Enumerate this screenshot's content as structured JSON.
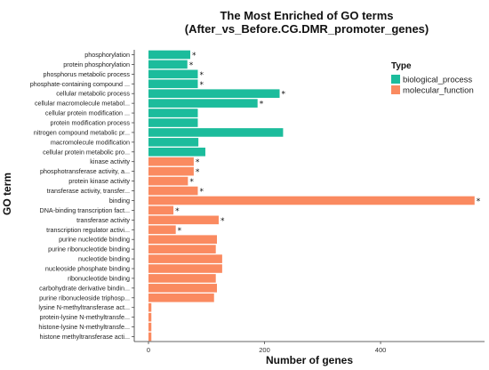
{
  "chart_data": {
    "type": "bar",
    "orientation": "horizontal",
    "title_line1": "The Most Enriched of GO terms",
    "title_line2": "(After_vs_Before.CG.DMR_promoter_genes)",
    "xlabel": "Number of genes",
    "ylabel": "GO term",
    "xlim": [
      0,
      570
    ],
    "xticks": [
      0,
      200,
      400
    ],
    "legend": {
      "title": "Type",
      "position": "right",
      "entries": [
        {
          "name": "biological_process",
          "color": "#1cbc9c"
        },
        {
          "name": "molecular_function",
          "color": "#fa8a60"
        }
      ]
    },
    "bars": [
      {
        "label": "phosphorylation",
        "value": 72,
        "type": "biological_process",
        "star": "*"
      },
      {
        "label": "protein phosphorylation",
        "value": 67,
        "type": "biological_process",
        "star": "*"
      },
      {
        "label": "phosphorus metabolic process",
        "value": 85,
        "type": "biological_process",
        "star": "*"
      },
      {
        "label": "phosphate-containing compound ...",
        "value": 85,
        "type": "biological_process",
        "star": "*"
      },
      {
        "label": "cellular metabolic process",
        "value": 226,
        "type": "biological_process",
        "star": "*"
      },
      {
        "label": "cellular macromolecule metabol...",
        "value": 188,
        "type": "biological_process",
        "star": "*"
      },
      {
        "label": "cellular protein modification ...",
        "value": 85,
        "type": "biological_process",
        "star": ""
      },
      {
        "label": "protein modification process",
        "value": 85,
        "type": "biological_process",
        "star": ""
      },
      {
        "label": "nitrogen compound metabolic pr...",
        "value": 232,
        "type": "biological_process",
        "star": ""
      },
      {
        "label": "macromolecule modification",
        "value": 86,
        "type": "biological_process",
        "star": ""
      },
      {
        "label": "cellular protein metabolic pro...",
        "value": 98,
        "type": "biological_process",
        "star": ""
      },
      {
        "label": "kinase activity",
        "value": 78,
        "type": "molecular_function",
        "star": "*"
      },
      {
        "label": "phosphotransferase activity, a...",
        "value": 78,
        "type": "molecular_function",
        "star": "*"
      },
      {
        "label": "protein kinase activity",
        "value": 68,
        "type": "molecular_function",
        "star": "*"
      },
      {
        "label": "transferase activity, transfer...",
        "value": 85,
        "type": "molecular_function",
        "star": "*"
      },
      {
        "label": "binding",
        "value": 562,
        "type": "molecular_function",
        "star": "*"
      },
      {
        "label": "DNA-binding transcription fact...",
        "value": 43,
        "type": "molecular_function",
        "star": "*"
      },
      {
        "label": "transferase activity",
        "value": 121,
        "type": "molecular_function",
        "star": "*"
      },
      {
        "label": "transcription regulator activi...",
        "value": 47,
        "type": "molecular_function",
        "star": "*"
      },
      {
        "label": "purine nucleotide binding",
        "value": 118,
        "type": "molecular_function",
        "star": ""
      },
      {
        "label": "purine ribonucleotide binding",
        "value": 116,
        "type": "molecular_function",
        "star": ""
      },
      {
        "label": "nucleotide binding",
        "value": 127,
        "type": "molecular_function",
        "star": ""
      },
      {
        "label": "nucleoside phosphate binding",
        "value": 127,
        "type": "molecular_function",
        "star": ""
      },
      {
        "label": "ribonucleotide binding",
        "value": 116,
        "type": "molecular_function",
        "star": ""
      },
      {
        "label": "carbohydrate derivative bindin...",
        "value": 118,
        "type": "molecular_function",
        "star": ""
      },
      {
        "label": "purine ribonucleoside triphosp...",
        "value": 113,
        "type": "molecular_function",
        "star": ""
      },
      {
        "label": "lysine N-methyltransferase act...",
        "value": 5,
        "type": "molecular_function",
        "star": ""
      },
      {
        "label": "protein-lysine N-methyltransfe...",
        "value": 5,
        "type": "molecular_function",
        "star": ""
      },
      {
        "label": "histone-lysine N-methyltransfe...",
        "value": 5,
        "type": "molecular_function",
        "star": ""
      },
      {
        "label": "histone methyltransferase acti...",
        "value": 5,
        "type": "molecular_function",
        "star": ""
      }
    ]
  }
}
